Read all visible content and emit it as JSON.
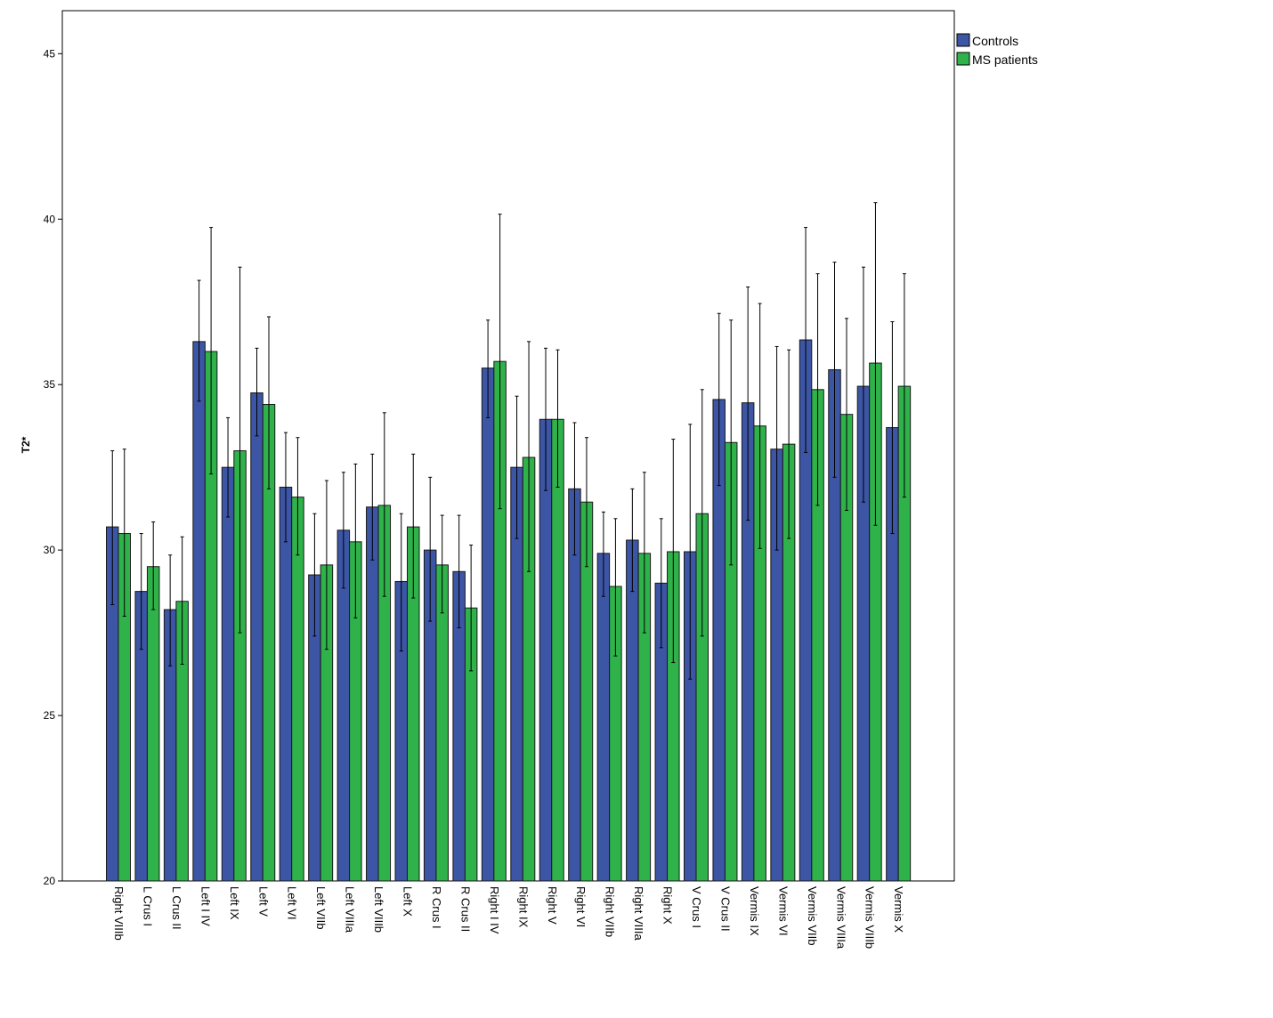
{
  "chart_data": {
    "type": "bar",
    "title": "",
    "xlabel": "",
    "ylabel": "T2*",
    "ylim": [
      20,
      46.3
    ],
    "yticks": [
      20,
      25,
      30,
      35,
      40,
      45
    ],
    "grid": false,
    "legend_position": "top-right outside",
    "categories": [
      "Right VIIIb",
      "L Crus I",
      "L Crus II",
      "Left I IV",
      "Left IX",
      "Left V",
      "Left VI",
      "Left VIIb",
      "Left VIIIa",
      "Left VIIIb",
      "Left X",
      "R Crus I",
      "R Crus II",
      "Right I IV",
      "Right IX",
      "Right V",
      "Right VI",
      "Right VIIb",
      "Right VIIIa",
      "Right X",
      "V Crus I",
      "V Crus II",
      "Vermis IX",
      "Vermis VI",
      "Vermis VIIb",
      "Vermis VIIIa",
      "Vermis VIIIb",
      "Vermis X"
    ],
    "series": [
      {
        "name": "Controls",
        "color": "#3c55a5",
        "values": [
          30.7,
          28.75,
          28.2,
          36.3,
          32.5,
          34.75,
          31.9,
          29.25,
          30.6,
          31.3,
          29.05,
          30.0,
          29.35,
          35.5,
          32.5,
          33.95,
          31.85,
          29.9,
          30.3,
          29.0,
          29.95,
          34.55,
          34.45,
          33.05,
          36.35,
          35.45,
          34.95,
          33.7
        ],
        "err_low": [
          28.35,
          27.0,
          26.5,
          34.5,
          31.0,
          33.45,
          30.25,
          27.4,
          28.85,
          29.7,
          26.95,
          27.85,
          27.65,
          34.0,
          30.35,
          31.8,
          29.85,
          28.6,
          28.75,
          27.05,
          26.1,
          31.95,
          30.9,
          30.0,
          32.95,
          32.2,
          31.45,
          30.5
        ],
        "err_high": [
          33.0,
          30.5,
          29.85,
          38.15,
          34.0,
          36.1,
          33.55,
          31.1,
          32.35,
          32.9,
          31.1,
          32.2,
          31.05,
          36.95,
          34.65,
          36.1,
          33.85,
          31.15,
          31.85,
          30.95,
          33.8,
          37.15,
          37.95,
          36.15,
          39.75,
          38.7,
          38.55,
          36.9
        ]
      },
      {
        "name": "MS patients",
        "color": "#2fb24a",
        "values": [
          30.5,
          29.5,
          28.45,
          36.0,
          33.0,
          34.4,
          31.6,
          29.55,
          30.25,
          31.35,
          30.7,
          29.55,
          28.25,
          35.7,
          32.8,
          33.95,
          31.45,
          28.9,
          29.9,
          29.95,
          31.1,
          33.25,
          33.75,
          33.2,
          34.85,
          34.1,
          35.65,
          34.95
        ],
        "err_low": [
          28.0,
          28.2,
          26.55,
          32.3,
          27.5,
          31.85,
          29.85,
          27.0,
          27.95,
          28.6,
          28.55,
          28.1,
          26.35,
          31.25,
          29.35,
          31.9,
          29.5,
          26.8,
          27.5,
          26.6,
          27.4,
          29.55,
          30.05,
          30.35,
          31.35,
          31.2,
          30.75,
          31.6
        ],
        "err_high": [
          33.05,
          30.85,
          30.4,
          39.75,
          38.55,
          37.05,
          33.4,
          32.1,
          32.6,
          34.15,
          32.9,
          31.05,
          30.15,
          40.15,
          36.3,
          36.05,
          33.4,
          30.95,
          32.35,
          33.35,
          34.85,
          36.95,
          37.45,
          36.05,
          38.35,
          37.0,
          40.5,
          38.35
        ]
      }
    ]
  }
}
